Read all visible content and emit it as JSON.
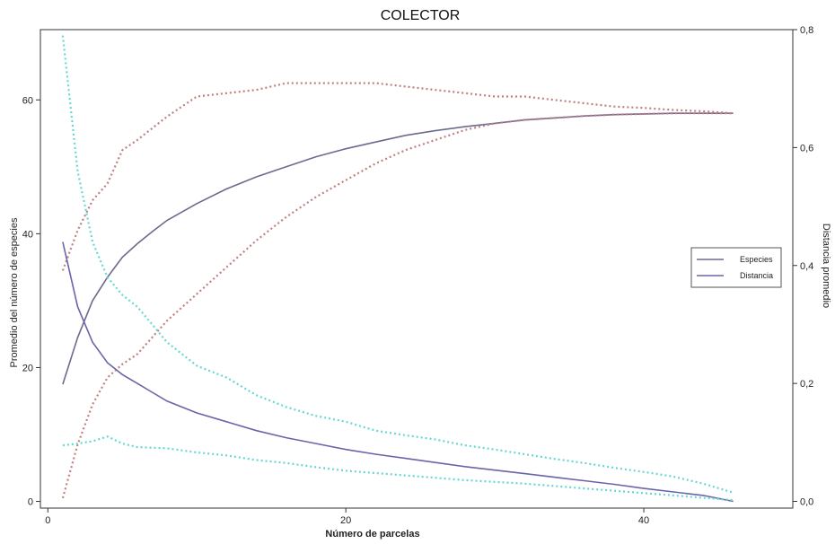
{
  "chart_data": {
    "type": "line",
    "title": "COLECTOR",
    "xlabel": "Número de parcelas",
    "ylabel_left": "Promedio del número de especies",
    "ylabel_right": "Distancia promedio",
    "xlim": [
      -0.5,
      50
    ],
    "ylim_left": [
      -1,
      70.5
    ],
    "ylim_right": [
      -0.0114,
      0.8
    ],
    "x_ticks": [
      0,
      20,
      40
    ],
    "y_left_ticks": [
      0,
      20,
      40,
      60
    ],
    "y_right_ticks": [
      "0,0",
      "0,2",
      "0,4",
      "0,6",
      "0,8"
    ],
    "y_right_tick_values": [
      0,
      0.2,
      0.4,
      0.6,
      0.8
    ],
    "legend_position": "right",
    "legend": [
      {
        "name": "Especies",
        "color": "#6d6a8f"
      },
      {
        "name": "Distancia",
        "color": "#6b64a8"
      }
    ],
    "series": [
      {
        "name": "Especies",
        "axis": "left",
        "style": "solid",
        "color": "#6d6a8f",
        "x": [
          1,
          2,
          3,
          4,
          5,
          6,
          7,
          8,
          10,
          12,
          14,
          16,
          18,
          20,
          22,
          24,
          26,
          28,
          30,
          32,
          34,
          36,
          38,
          40,
          42,
          44,
          46
        ],
        "y": [
          17.5,
          24.5,
          30,
          33.5,
          36.5,
          38.5,
          40.3,
          42,
          44.5,
          46.7,
          48.5,
          50,
          51.5,
          52.7,
          53.7,
          54.7,
          55.4,
          56,
          56.5,
          57,
          57.3,
          57.6,
          57.8,
          57.9,
          58,
          58,
          58
        ]
      },
      {
        "name": "Especies upper bound",
        "axis": "left",
        "style": "dotted",
        "color": "#c08080",
        "x": [
          1,
          2,
          3,
          4,
          5,
          6,
          8,
          10,
          12,
          14,
          16,
          18,
          20,
          22,
          24,
          26,
          28,
          30,
          32,
          34,
          36,
          38,
          40,
          42,
          44,
          46
        ],
        "y": [
          34.5,
          40.5,
          45,
          47.5,
          52.5,
          54,
          57.5,
          60.5,
          61,
          61.5,
          62.5,
          62.5,
          62.5,
          62.5,
          62,
          61.5,
          61,
          60.5,
          60.5,
          60,
          59.5,
          59,
          58.8,
          58.5,
          58.3,
          58
        ]
      },
      {
        "name": "Especies lower bound",
        "axis": "left",
        "style": "dotted",
        "color": "#c08080",
        "x": [
          1,
          2,
          3,
          4,
          5,
          6,
          8,
          10,
          12,
          14,
          16,
          18,
          20,
          22,
          24,
          26,
          28,
          30,
          32,
          34,
          36,
          38,
          40,
          42,
          44,
          46
        ],
        "y": [
          0.5,
          8.5,
          14.5,
          18.5,
          20.5,
          22,
          27,
          31,
          35,
          39,
          42.5,
          45.5,
          48,
          50.5,
          52.5,
          54,
          55.5,
          56.5,
          57,
          57.3,
          57.6,
          57.8,
          57.9,
          58,
          58,
          58
        ]
      },
      {
        "name": "Distancia",
        "axis": "right",
        "style": "solid",
        "color": "#6b64a8",
        "x": [
          1,
          2,
          3,
          4,
          5,
          6,
          7,
          8,
          10,
          12,
          14,
          16,
          18,
          20,
          22,
          24,
          26,
          28,
          30,
          32,
          34,
          36,
          38,
          40,
          42,
          44,
          46
        ],
        "y": [
          0.44,
          0.33,
          0.27,
          0.235,
          0.215,
          0.2,
          0.185,
          0.17,
          0.15,
          0.135,
          0.12,
          0.108,
          0.098,
          0.088,
          0.08,
          0.073,
          0.066,
          0.059,
          0.053,
          0.047,
          0.041,
          0.035,
          0.029,
          0.022,
          0.016,
          0.01,
          0.0
        ]
      },
      {
        "name": "Distancia upper bound",
        "axis": "right",
        "style": "dotted",
        "color": "#66d8d2",
        "x": [
          1,
          2,
          3,
          4,
          5,
          6,
          7,
          8,
          10,
          12,
          14,
          16,
          18,
          20,
          22,
          24,
          26,
          28,
          30,
          32,
          34,
          36,
          38,
          40,
          42,
          44,
          46
        ],
        "y": [
          0.79,
          0.56,
          0.44,
          0.38,
          0.35,
          0.33,
          0.3,
          0.27,
          0.23,
          0.21,
          0.18,
          0.16,
          0.145,
          0.135,
          0.12,
          0.112,
          0.105,
          0.095,
          0.088,
          0.08,
          0.072,
          0.065,
          0.057,
          0.05,
          0.042,
          0.03,
          0.015
        ]
      },
      {
        "name": "Distancia lower bound",
        "axis": "right",
        "style": "dotted",
        "color": "#66d8d2",
        "x": [
          1,
          2,
          3,
          4,
          5,
          6,
          8,
          10,
          12,
          14,
          16,
          18,
          20,
          22,
          24,
          26,
          28,
          30,
          32,
          34,
          36,
          38,
          40,
          42,
          44,
          46
        ],
        "y": [
          0.095,
          0.098,
          0.102,
          0.11,
          0.098,
          0.092,
          0.09,
          0.083,
          0.078,
          0.07,
          0.065,
          0.058,
          0.052,
          0.048,
          0.044,
          0.04,
          0.036,
          0.033,
          0.03,
          0.026,
          0.022,
          0.018,
          0.014,
          0.01,
          0.006,
          0.002
        ]
      }
    ]
  }
}
